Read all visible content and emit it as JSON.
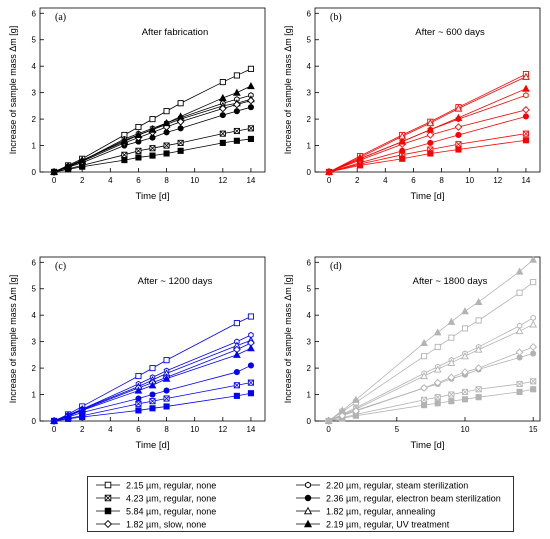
{
  "colors": {
    "a": "#000000",
    "b": "#ff0000",
    "c": "#0000ff",
    "d": "#b3b3b3"
  },
  "legend": [
    {
      "label": "2.15 µm, regular, none",
      "marker": "square-open"
    },
    {
      "label": "2.20 µm, regular, steam sterilization",
      "marker": "hexagon-open"
    },
    {
      "label": "4.23 µm, regular, none",
      "marker": "square-x"
    },
    {
      "label": "2.36 µm, regular, electron beam sterilization",
      "marker": "circle-filled"
    },
    {
      "label": "5.84 µm, regular, none",
      "marker": "square-filled"
    },
    {
      "label": "1.82 µm, regular, annealing",
      "marker": "triangle-open"
    },
    {
      "label": "1.82 µm, slow, none",
      "marker": "diamond-open"
    },
    {
      "label": "2.19 µm, regular, UV treatment",
      "marker": "triangle-filled"
    }
  ],
  "chart_data": [
    {
      "type": "line",
      "panel": "(a)",
      "title": "After fabrication",
      "xlabel": "Time [d]",
      "ylabel": "Increase of sample mass Δm [g]",
      "xlim": [
        -1,
        15
      ],
      "ylim": [
        0,
        6.2
      ],
      "xticks": [
        0,
        2,
        4,
        6,
        8,
        10,
        12,
        14
      ],
      "yticks": [
        0,
        1,
        2,
        3,
        4,
        5,
        6
      ],
      "x": [
        0,
        1,
        2,
        5,
        6,
        7,
        8,
        9,
        12,
        13,
        14
      ],
      "series": [
        {
          "name": "2.15 µm, regular, none",
          "values": [
            0,
            0.25,
            0.5,
            1.4,
            1.7,
            2.0,
            2.3,
            2.6,
            3.4,
            3.65,
            3.9
          ]
        },
        {
          "name": "2.20 µm, regular, steam sterilization",
          "values": [
            0,
            0.22,
            0.42,
            1.25,
            1.45,
            1.65,
            1.85,
            2.05,
            2.6,
            2.75,
            2.9
          ]
        },
        {
          "name": "4.23 µm, regular, none",
          "values": [
            0,
            0.12,
            0.25,
            0.65,
            0.8,
            0.9,
            1.0,
            1.1,
            1.45,
            1.55,
            1.65
          ]
        },
        {
          "name": "2.36 µm, regular, electron beam sterilization",
          "values": [
            0,
            0.18,
            0.35,
            1.0,
            1.15,
            1.3,
            1.5,
            1.65,
            2.15,
            2.3,
            2.45
          ]
        },
        {
          "name": "5.84 µm, regular, none",
          "values": [
            0,
            0.1,
            0.2,
            0.45,
            0.55,
            0.62,
            0.7,
            0.8,
            1.1,
            1.18,
            1.25
          ]
        },
        {
          "name": "1.82 µm, regular, annealing",
          "values": [
            0,
            0.2,
            0.42,
            1.2,
            1.4,
            1.6,
            1.8,
            2.0,
            2.5,
            2.6,
            2.75
          ]
        },
        {
          "name": "1.82 µm, slow, none",
          "values": [
            0,
            0.2,
            0.4,
            1.1,
            1.3,
            1.5,
            1.7,
            1.9,
            2.4,
            2.55,
            2.7
          ]
        },
        {
          "name": "2.19 µm, regular, UV treatment",
          "values": [
            0,
            0.22,
            0.45,
            1.15,
            1.4,
            1.6,
            1.85,
            2.1,
            2.8,
            3.0,
            3.25
          ]
        }
      ]
    },
    {
      "type": "line",
      "panel": "(b)",
      "title": "After ~ 600 days",
      "xlabel": "Time [d]",
      "ylabel": "Increase of sample mass Δm [g]",
      "xlim": [
        -1,
        15
      ],
      "ylim": [
        0,
        6.2
      ],
      "xticks": [
        0,
        2,
        4,
        6,
        8,
        10,
        12,
        14
      ],
      "yticks": [
        0,
        1,
        2,
        3,
        4,
        5,
        6
      ],
      "x": [
        0,
        2.2,
        5.2,
        7.2,
        9.2,
        14
      ],
      "series": [
        {
          "name": "2.15 µm, regular, none",
          "values": [
            0,
            0.6,
            1.4,
            1.9,
            2.45,
            3.7
          ]
        },
        {
          "name": "2.20 µm, regular, steam sterilization",
          "values": [
            0,
            0.5,
            1.15,
            1.6,
            2.0,
            2.9
          ]
        },
        {
          "name": "4.23 µm, regular, none",
          "values": [
            0,
            0.3,
            0.65,
            0.85,
            1.05,
            1.45
          ]
        },
        {
          "name": "2.36 µm, regular, electron beam sterilization",
          "values": [
            0,
            0.35,
            0.8,
            1.1,
            1.4,
            2.1
          ]
        },
        {
          "name": "5.84 µm, regular, none",
          "values": [
            0,
            0.25,
            0.5,
            0.7,
            0.85,
            1.2
          ]
        },
        {
          "name": "1.82 µm, regular, annealing",
          "values": [
            0,
            0.55,
            1.35,
            1.85,
            2.4,
            3.6
          ]
        },
        {
          "name": "1.82 µm, slow, none",
          "values": [
            0,
            0.45,
            1.05,
            1.4,
            1.7,
            2.35
          ]
        },
        {
          "name": "2.19 µm, regular, UV treatment",
          "values": [
            0,
            0.5,
            1.15,
            1.6,
            2.05,
            3.15
          ]
        }
      ]
    },
    {
      "type": "line",
      "panel": "(c)",
      "title": "After ~ 1200 days",
      "xlabel": "Time [d]",
      "ylabel": "Increase of sample mass Δm [g]",
      "xlim": [
        -1,
        15
      ],
      "ylim": [
        0,
        6.2
      ],
      "xticks": [
        0,
        2,
        4,
        6,
        8,
        10,
        12,
        14
      ],
      "yticks": [
        0,
        1,
        2,
        3,
        4,
        5,
        6
      ],
      "x": [
        0,
        1,
        2,
        6,
        7,
        8,
        13,
        14
      ],
      "series": [
        {
          "name": "2.15 µm, regular, none",
          "values": [
            0,
            0.25,
            0.55,
            1.7,
            2.0,
            2.3,
            3.7,
            3.95
          ]
        },
        {
          "name": "2.20 µm, regular, steam sterilization",
          "values": [
            0,
            0.22,
            0.45,
            1.4,
            1.65,
            1.9,
            3.0,
            3.25
          ]
        },
        {
          "name": "4.23 µm, regular, none",
          "values": [
            0,
            0.1,
            0.2,
            0.65,
            0.75,
            0.85,
            1.35,
            1.45
          ]
        },
        {
          "name": "2.36 µm, regular, electron beam sterilization",
          "values": [
            0,
            0.15,
            0.32,
            0.85,
            1.0,
            1.15,
            1.85,
            2.1
          ]
        },
        {
          "name": "5.84 µm, regular, none",
          "values": [
            0,
            0.08,
            0.15,
            0.4,
            0.48,
            0.55,
            0.95,
            1.05
          ]
        },
        {
          "name": "1.82 µm, regular, annealing",
          "values": [
            0,
            0.2,
            0.45,
            1.3,
            1.55,
            1.8,
            2.85,
            3.05
          ]
        },
        {
          "name": "1.82 µm, slow, none",
          "values": [
            0,
            0.2,
            0.42,
            1.25,
            1.45,
            1.65,
            2.7,
            2.95
          ]
        },
        {
          "name": "2.19 µm, regular, UV treatment",
          "values": [
            0,
            0.18,
            0.4,
            1.15,
            1.35,
            1.6,
            2.5,
            2.75
          ]
        }
      ]
    },
    {
      "type": "line",
      "panel": "(d)",
      "title": "After ~ 1800 days",
      "xlabel": "Time [d]",
      "ylabel": "Increase of sample mass Δm [g]",
      "xlim": [
        -1,
        15.5
      ],
      "ylim": [
        0,
        6.2
      ],
      "xticks": [
        0,
        5,
        10,
        15
      ],
      "yticks": [
        0,
        1,
        2,
        3,
        4,
        5,
        6
      ],
      "x": [
        0,
        1,
        2,
        7,
        8,
        9,
        10,
        11,
        14,
        15
      ],
      "series": [
        {
          "name": "2.15 µm, regular, none",
          "values": [
            0,
            0.35,
            0.7,
            2.45,
            2.8,
            3.15,
            3.5,
            3.8,
            4.85,
            5.25
          ]
        },
        {
          "name": "2.20 µm, regular, steam sterilization",
          "values": [
            0,
            0.25,
            0.5,
            1.8,
            2.05,
            2.3,
            2.55,
            2.8,
            3.6,
            3.9
          ]
        },
        {
          "name": "4.23 µm, regular, none",
          "values": [
            0,
            0.12,
            0.25,
            0.8,
            0.9,
            1.0,
            1.1,
            1.2,
            1.4,
            1.5
          ]
        },
        {
          "name": "2.36 µm, regular, electron beam sterilization",
          "values": [
            0,
            0.2,
            0.4,
            1.25,
            1.4,
            1.6,
            1.75,
            1.95,
            2.4,
            2.55
          ]
        },
        {
          "name": "5.84 µm, regular, none",
          "values": [
            0,
            0.1,
            0.2,
            0.6,
            0.67,
            0.75,
            0.82,
            0.9,
            1.1,
            1.2
          ]
        },
        {
          "name": "1.82 µm, regular, annealing",
          "values": [
            0,
            0.22,
            0.45,
            1.7,
            1.95,
            2.2,
            2.45,
            2.7,
            3.4,
            3.65
          ]
        },
        {
          "name": "1.82 µm, slow, none",
          "values": [
            0,
            0.2,
            0.38,
            1.25,
            1.45,
            1.65,
            1.85,
            2.0,
            2.6,
            2.8
          ]
        },
        {
          "name": "2.19 µm, regular, UV treatment",
          "values": [
            0,
            0.4,
            0.8,
            2.95,
            3.35,
            3.75,
            4.15,
            4.5,
            5.65,
            6.1
          ]
        }
      ]
    }
  ]
}
